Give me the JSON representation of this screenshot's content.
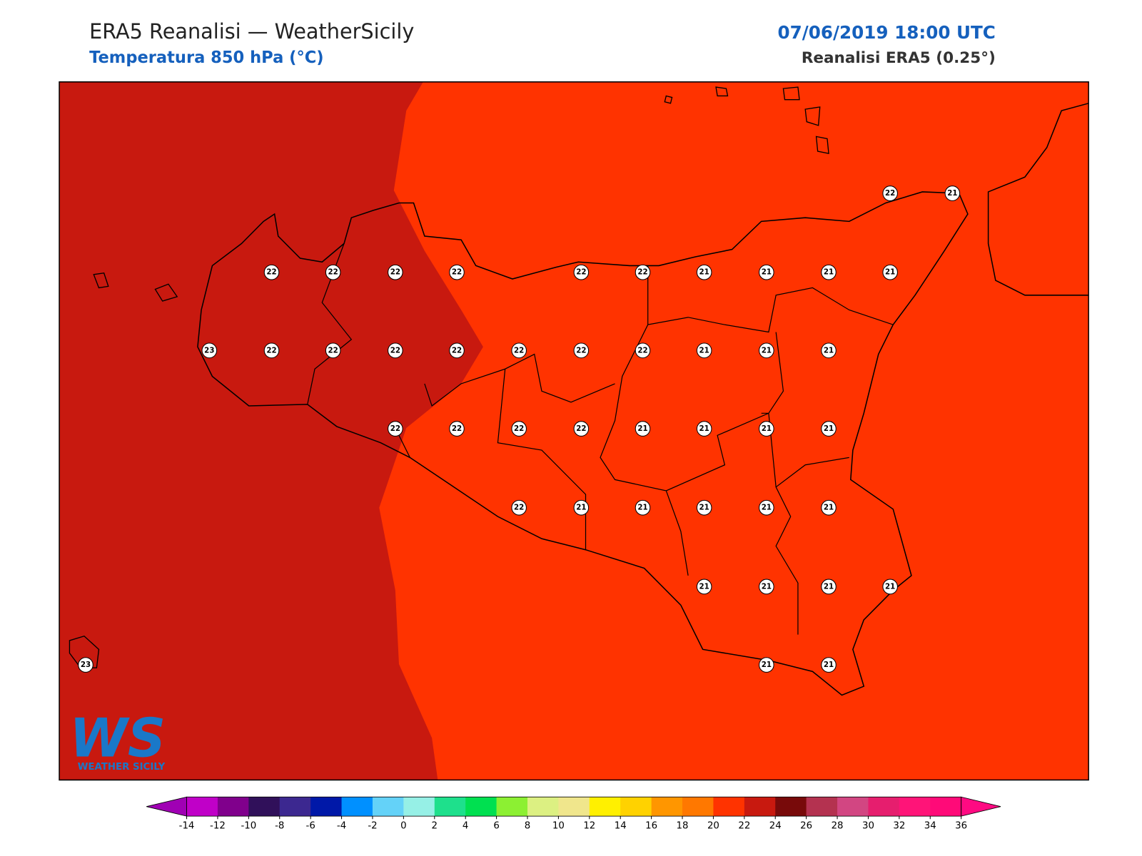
{
  "header": {
    "title": "ERA5 Reanalisi — WeatherSicily",
    "subtitle": "Temperatura 850 hPa (°C)",
    "datetime": "07/06/2019 18:00 UTC",
    "source": "Reanalisi ERA5 (0.25°)"
  },
  "points": [
    22,
    21,
    22,
    22,
    22,
    22,
    22,
    22,
    21,
    21,
    21,
    21,
    23,
    22,
    22,
    22,
    22,
    22,
    22,
    22,
    21,
    21,
    21,
    22,
    22,
    22,
    22,
    21,
    21,
    21,
    21,
    22,
    21,
    21,
    21,
    21,
    21,
    21,
    21,
    21,
    21,
    23,
    21,
    21
  ],
  "colorbar": {
    "ticks": [
      -14,
      -12,
      -10,
      -8,
      -6,
      -4,
      -2,
      0,
      2,
      4,
      6,
      8,
      10,
      12,
      14,
      16,
      18,
      20,
      22,
      24,
      26,
      28,
      30,
      32,
      34,
      36
    ],
    "colors": [
      "#a000b4",
      "#c000c8",
      "#80008c",
      "#30105a",
      "#3c2890",
      "#0018a8",
      "#0090ff",
      "#64d2f8",
      "#96f0e6",
      "#1ee08c",
      "#00e050",
      "#8cf032",
      "#dcf082",
      "#f0e68c",
      "#fff000",
      "#ffd200",
      "#ff9600",
      "#ff7800",
      "#ff3300",
      "#c8190f",
      "#780a0a",
      "#b43250",
      "#d24682",
      "#e61e6e",
      "#ff1478",
      "#ff0a78",
      "#ff0a82"
    ]
  },
  "logo": {
    "mark": "WS",
    "text": "WEATHER SICILY"
  }
}
